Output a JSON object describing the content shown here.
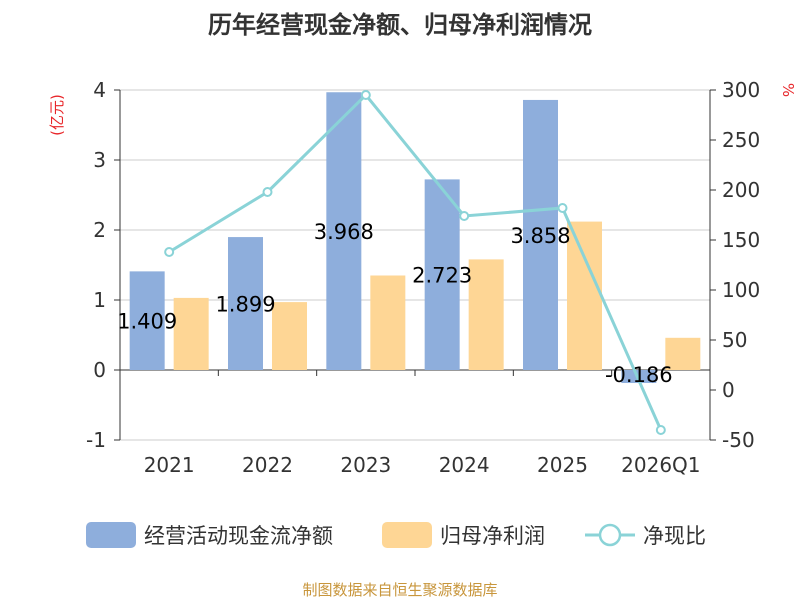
{
  "chart_data": {
    "type": "bar",
    "title": "历年经营现金净额、归母净利润情况",
    "categories": [
      "2021",
      "2022",
      "2023",
      "2024",
      "2025",
      "2026Q1"
    ],
    "series": [
      {
        "name": "经营活动现金流净额",
        "kind": "bar",
        "axis": "left",
        "color": "#8eaedc",
        "values": [
          1.409,
          1.899,
          3.968,
          2.723,
          3.858,
          -0.186
        ]
      },
      {
        "name": "归母净利润",
        "kind": "bar",
        "axis": "left",
        "color": "#fed695",
        "values": [
          1.03,
          0.97,
          1.35,
          1.58,
          2.12,
          0.46
        ]
      },
      {
        "name": "净现比",
        "kind": "line",
        "axis": "right",
        "color": "#8ad3d7",
        "values": [
          138,
          198,
          295,
          174,
          182,
          -40
        ]
      }
    ],
    "data_labels": [
      "1.409",
      "1.899",
      "3.968",
      "2.723",
      "3.858",
      "-0.186"
    ],
    "left_axis": {
      "unit": "(亿元)",
      "ylim": [
        -1,
        4
      ],
      "ticks": [
        -1,
        0,
        1,
        2,
        3,
        4
      ]
    },
    "right_axis": {
      "unit": "%",
      "ylim": [
        -50,
        300
      ],
      "ticks": [
        -50,
        0,
        50,
        100,
        150,
        200,
        250,
        300
      ]
    },
    "grid": true,
    "legend_position": "bottom"
  },
  "source_text": "制图数据来自恒生聚源数据库"
}
